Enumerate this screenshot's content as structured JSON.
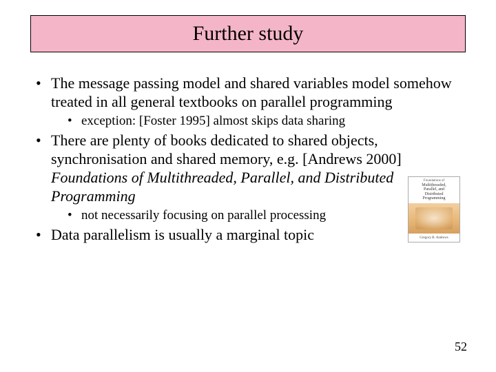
{
  "colors": {
    "title_bg": "#f5b5c8",
    "title_border": "#000000",
    "background": "#ffffff",
    "text": "#000000"
  },
  "typography": {
    "family": "Times New Roman",
    "title_fontsize": 30,
    "bullet1_fontsize": 22,
    "bullet2_fontsize": 19,
    "pagenum_fontsize": 18
  },
  "title": "Further study",
  "bullets": [
    {
      "text": "The message passing model and shared variables model somehow treated in all general textbooks on parallel programming",
      "sub": [
        {
          "text": "exception: [Foster 1995] almost skips data sharing"
        }
      ]
    },
    {
      "text": "There are plenty of books dedicated to shared objects, synchronisation and shared memory, e.g. [Andrews 2000] ",
      "italic_tail": "Foundations of Multithreaded, Parallel, and Distributed Programming",
      "sub": [
        {
          "text": "not necessarily focusing on parallel processing"
        }
      ]
    },
    {
      "text": "Data parallelism is usually a marginal topic",
      "sub": []
    }
  ],
  "book_thumbnail": {
    "top_small": "Foundations of",
    "line1": "Multithreaded,",
    "line2": "Parallel, and",
    "line3": "Distributed",
    "line4": "Programming",
    "author": "Gregory R. Andrews",
    "border_color": "#aaaaaa",
    "gradient_top": "#f2d0a0",
    "gradient_bottom": "#d7a05e"
  },
  "page_number": "52"
}
